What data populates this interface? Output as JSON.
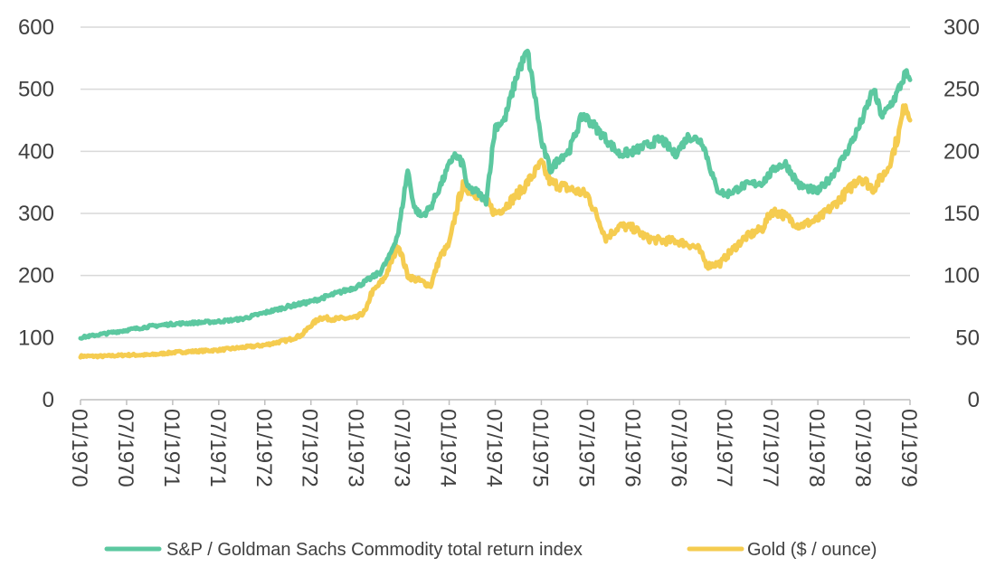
{
  "chart_data": {
    "type": "line",
    "title": "",
    "xlabel": "",
    "ylabel_left": "",
    "ylabel_right": "",
    "x_tick_labels": [
      "01/1970",
      "07/1970",
      "01/1971",
      "07/1971",
      "01/1972",
      "07/1972",
      "01/1973",
      "07/1973",
      "01/1974",
      "07/1974",
      "01/1975",
      "07/1975",
      "01/1976",
      "07/1976",
      "01/1977",
      "07/1977",
      "01/1978",
      "07/1978",
      "01/1979"
    ],
    "x_range": [
      1970.0,
      1979.0
    ],
    "y_left": {
      "min": 0,
      "max": 600,
      "ticks": [
        0,
        100,
        200,
        300,
        400,
        500,
        600
      ]
    },
    "y_right": {
      "min": 0,
      "max": 300,
      "ticks": [
        0,
        50,
        100,
        150,
        200,
        250,
        300
      ]
    },
    "grid": true,
    "legend_position": "bottom",
    "series": [
      {
        "name": "S&P / Goldman Sachs Commodity total return index",
        "axis": "left",
        "color": "#5cc8a0",
        "x": [
          1970.0,
          1970.25,
          1970.5,
          1970.75,
          1971.0,
          1971.25,
          1971.5,
          1971.75,
          1972.0,
          1972.25,
          1972.5,
          1972.75,
          1973.0,
          1973.25,
          1973.35,
          1973.45,
          1973.55,
          1973.62,
          1973.7,
          1973.8,
          1973.95,
          1974.05,
          1974.15,
          1974.2,
          1974.3,
          1974.4,
          1974.5,
          1974.6,
          1974.75,
          1974.85,
          1974.95,
          1975.0,
          1975.1,
          1975.2,
          1975.3,
          1975.45,
          1975.55,
          1975.7,
          1975.85,
          1976.0,
          1976.15,
          1976.3,
          1976.45,
          1976.6,
          1976.75,
          1976.9,
          1977.0,
          1977.2,
          1977.4,
          1977.55,
          1977.65,
          1977.8,
          1978.0,
          1978.15,
          1978.3,
          1978.45,
          1978.52,
          1978.6,
          1978.7,
          1978.85,
          1978.95,
          1979.0
        ],
        "values": [
          100,
          106,
          112,
          118,
          122,
          124,
          126,
          130,
          140,
          150,
          158,
          170,
          182,
          205,
          230,
          270,
          370,
          310,
          295,
          310,
          360,
          395,
          380,
          340,
          335,
          320,
          440,
          450,
          530,
          560,
          470,
          415,
          370,
          390,
          400,
          460,
          445,
          420,
          395,
          400,
          410,
          420,
          395,
          425,
          415,
          340,
          330,
          345,
          350,
          375,
          380,
          345,
          335,
          360,
          395,
          440,
          465,
          500,
          455,
          490,
          525,
          515
        ]
      },
      {
        "name": "Gold ($ / ounce)",
        "axis": "right",
        "color": "#f5cc50",
        "x": [
          1970.0,
          1970.25,
          1970.5,
          1970.75,
          1971.0,
          1971.25,
          1971.5,
          1971.75,
          1972.0,
          1972.25,
          1972.4,
          1972.5,
          1972.6,
          1972.75,
          1973.0,
          1973.1,
          1973.15,
          1973.3,
          1973.45,
          1973.55,
          1973.6,
          1973.8,
          1973.9,
          1974.0,
          1974.1,
          1974.15,
          1974.25,
          1974.4,
          1974.5,
          1974.6,
          1974.8,
          1974.9,
          1975.0,
          1975.1,
          1975.3,
          1975.5,
          1975.65,
          1975.7,
          1975.85,
          1976.0,
          1976.15,
          1976.3,
          1976.45,
          1976.6,
          1976.7,
          1976.8,
          1976.95,
          1977.0,
          1977.2,
          1977.4,
          1977.5,
          1977.6,
          1977.8,
          1978.0,
          1978.15,
          1978.35,
          1978.45,
          1978.6,
          1978.75,
          1978.82,
          1978.88,
          1978.95,
          1979.0
        ],
        "values": [
          35,
          35,
          36,
          36,
          38,
          39,
          40,
          42,
          44,
          48,
          52,
          60,
          66,
          65,
          66,
          72,
          85,
          98,
          125,
          100,
          98,
          92,
          115,
          125,
          160,
          172,
          168,
          160,
          150,
          155,
          170,
          180,
          190,
          175,
          170,
          165,
          140,
          130,
          140,
          138,
          130,
          128,
          128,
          125,
          122,
          108,
          110,
          115,
          130,
          138,
          152,
          150,
          140,
          145,
          155,
          170,
          180,
          170,
          185,
          200,
          215,
          240,
          225
        ]
      }
    ]
  }
}
